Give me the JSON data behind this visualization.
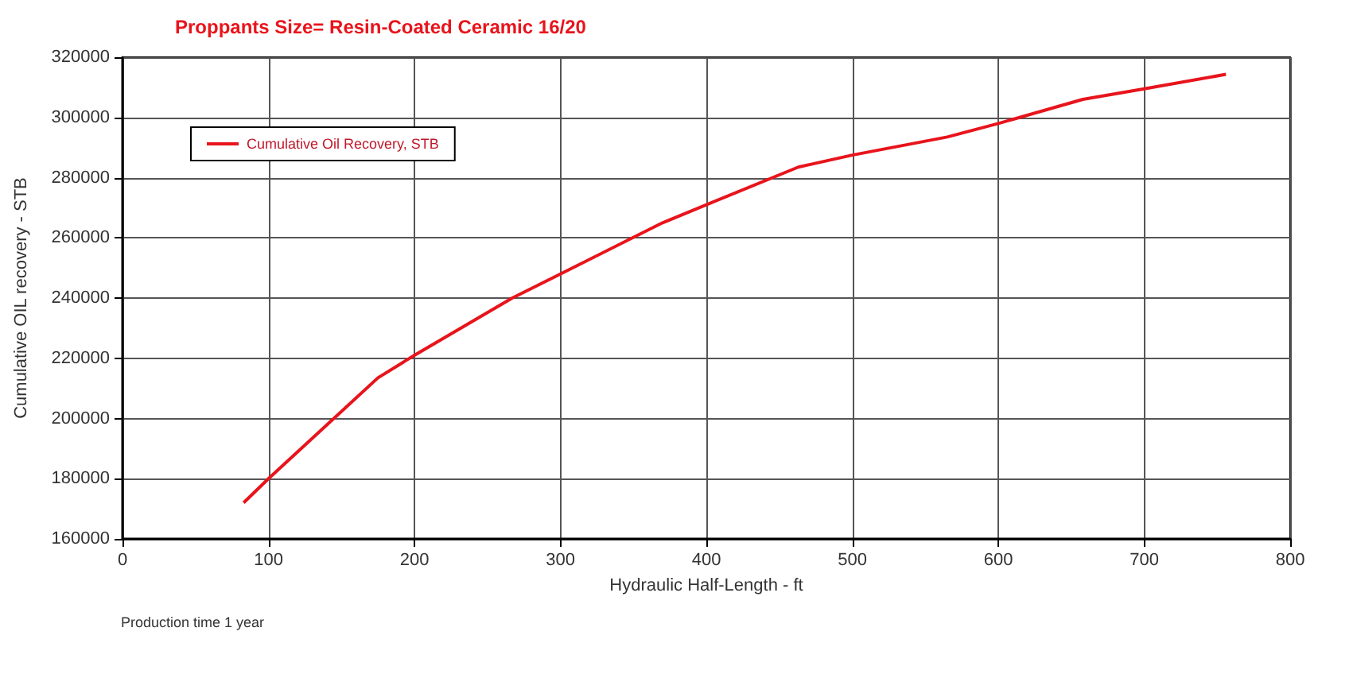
{
  "chart_data": {
    "type": "line",
    "title": "Proppants Size= Resin-Coated Ceramic 16/20",
    "xlabel": "Hydraulic Half-Length - ft",
    "ylabel": "Cumulative OIL recovery - STB",
    "annotations": [
      "Production time 1 year"
    ],
    "series": [
      {
        "name": "Cumulative Oil Recovery, STB",
        "color": "#e8141c",
        "x": [
          83,
          100,
          175,
          200,
          267,
          300,
          370,
          400,
          463,
          500,
          565,
          600,
          658,
          700,
          756
        ],
        "values": [
          172000,
          180000,
          213500,
          221000,
          240000,
          248000,
          265000,
          271000,
          283500,
          287500,
          293500,
          298000,
          306000,
          309500,
          314300
        ]
      }
    ],
    "xlim": [
      0,
      800
    ],
    "xticks": [
      0,
      100,
      200,
      300,
      400,
      500,
      600,
      700,
      800
    ],
    "ylim": [
      160000,
      320000
    ],
    "yticks": [
      160000,
      180000,
      200000,
      220000,
      240000,
      260000,
      280000,
      300000,
      320000
    ],
    "grid": true,
    "legend": "top left",
    "marker": "none",
    "line_style": "solid"
  }
}
